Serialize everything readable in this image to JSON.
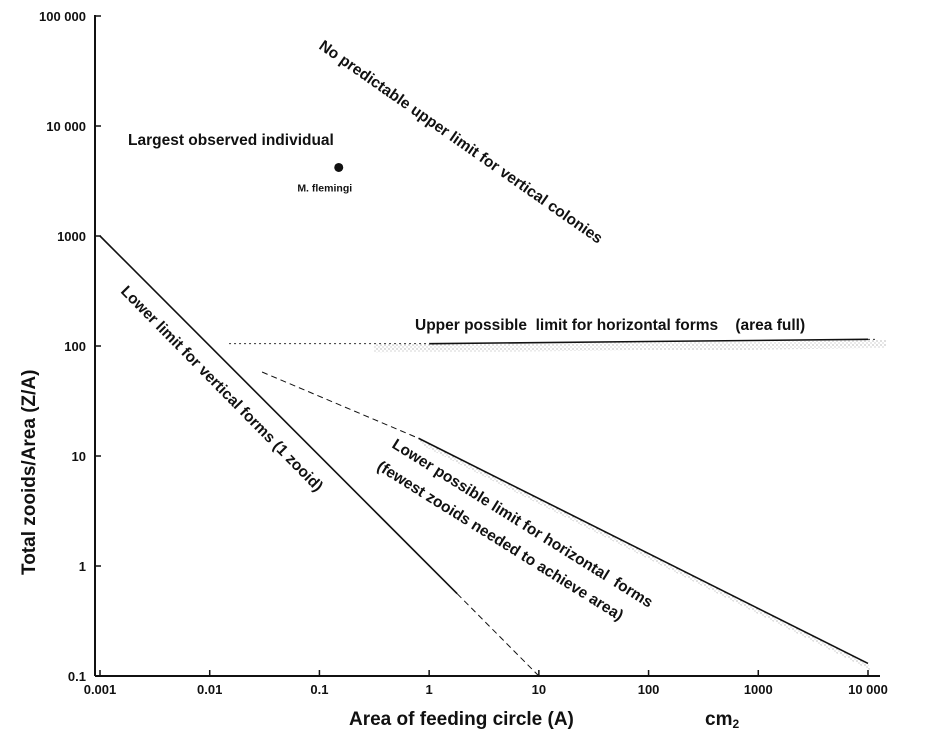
{
  "chart_data": {
    "type": "line",
    "title": "",
    "xlabel": "Area of feeding circle (A)",
    "xunit_prefix": "cm",
    "xunit_suffix": "2",
    "ylabel": "Total zooids/Area (Z/A)",
    "xscale": "log",
    "yscale": "log",
    "xlim": [
      0.001,
      10000
    ],
    "ylim": [
      0.1,
      100000
    ],
    "grid": false,
    "x_ticks": [
      {
        "value": 0.001,
        "label": "0.001"
      },
      {
        "value": 0.01,
        "label": "0.01"
      },
      {
        "value": 0.1,
        "label": "0.1"
      },
      {
        "value": 1,
        "label": "1"
      },
      {
        "value": 10,
        "label": "10"
      },
      {
        "value": 100,
        "label": "100"
      },
      {
        "value": 1000,
        "label": "1000"
      },
      {
        "value": 10000,
        "label": "10 000"
      }
    ],
    "y_ticks": [
      {
        "value": 0.1,
        "label": "0.1"
      },
      {
        "value": 1,
        "label": "1"
      },
      {
        "value": 10,
        "label": "10"
      },
      {
        "value": 100,
        "label": "100"
      },
      {
        "value": 1000,
        "label": "1000"
      },
      {
        "value": 10000,
        "label": "10 000"
      },
      {
        "value": 100000,
        "label": "100 000"
      }
    ],
    "series": [
      {
        "style": "solid",
        "x": [
          0.001,
          1.8
        ],
        "y": [
          1000,
          0.56
        ]
      },
      {
        "style": "dashed",
        "x": [
          1.8,
          10
        ],
        "y": [
          0.56,
          0.1
        ]
      },
      {
        "style": "solid",
        "x": [
          1,
          10000
        ],
        "y": [
          105,
          115
        ]
      },
      {
        "style": "dotted",
        "x": [
          0.015,
          1
        ],
        "y": [
          105,
          105
        ]
      },
      {
        "style": "dotted",
        "x": [
          10000,
          12000
        ],
        "y": [
          115,
          115
        ]
      },
      {
        "style": "solid",
        "x": [
          0.8,
          10000
        ],
        "y": [
          14.5,
          0.13
        ]
      },
      {
        "style": "dashed",
        "x": [
          0.03,
          0.8
        ],
        "y": [
          58,
          14.5
        ]
      }
    ],
    "points": [
      {
        "x": 0.15,
        "y": 4200,
        "label": "M. flemingi"
      }
    ],
    "annotations": [
      {
        "text": "Largest observed individual"
      },
      {
        "text": "No predictable upper limit for vertical colonies"
      },
      {
        "text": "Upper possible  limit for horizontal forms    (area full)"
      },
      {
        "text": "Lower limit for vertical forms (1 zooid)"
      },
      {
        "text": "Lower possible limit for horizontal  forms"
      },
      {
        "text": "(fewest zooids needed to achieve area)"
      }
    ]
  }
}
